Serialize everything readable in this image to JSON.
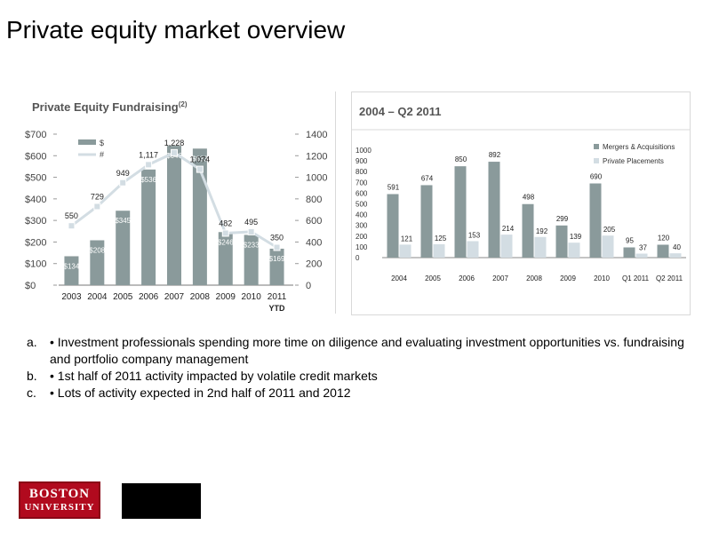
{
  "slide": {
    "title": "Private equity market overview"
  },
  "bullets": [
    {
      "letter": "a.",
      "text": "• Investment professionals spending more time on diligence and evaluating investment opportunities vs. fundraising and portfolio company management"
    },
    {
      "letter": "b.",
      "text": "• 1st half of 2011 activity impacted by volatile credit markets"
    },
    {
      "letter": "c.",
      "text": "• Lots of activity expected in 2nd half of 2011 and 2012"
    }
  ],
  "logo": {
    "line1": "BOSTON",
    "line2": "UNIVERSITY"
  },
  "colors": {
    "bar": "#8a9a9b",
    "line": "#d3dde3",
    "pp_bar": "#d3dde3",
    "title_text": "#555555",
    "logo": "#b10a1e"
  },
  "chart_data": [
    {
      "type": "bar",
      "title": "Private Equity Fundraising",
      "title_superscript": "(2)",
      "categories": [
        "2003",
        "2004",
        "2005",
        "2006",
        "2007",
        "2008",
        "2009",
        "2010",
        "2011"
      ],
      "category_sublabel": {
        "2011": "YTD"
      },
      "ylim": [
        0,
        700
      ],
      "yticks": [
        "$0",
        "$100",
        "$200",
        "$300",
        "$400",
        "$500",
        "$600",
        "$700"
      ],
      "y2lim": [
        0,
        1400
      ],
      "y2ticks": [
        "0",
        "200",
        "400",
        "600",
        "800",
        "1000",
        "1200",
        "1400"
      ],
      "legend": [
        "$",
        "#"
      ],
      "series": [
        {
          "name": "$",
          "type": "bar",
          "axis": "left",
          "values": [
            134,
            208,
            345,
            536,
            646,
            633,
            246,
            233,
            169
          ],
          "labels": [
            "$134",
            "$208",
            "$345",
            "$536",
            "$646",
            "$633",
            "$246",
            "$233",
            "$169"
          ]
        },
        {
          "name": "#",
          "type": "line",
          "axis": "right",
          "values": [
            550,
            729,
            949,
            1117,
            1228,
            1074,
            482,
            495,
            350
          ],
          "labels": [
            "550",
            "729",
            "949",
            "1,117",
            "1,228",
            "1,074",
            "482",
            "495",
            "350"
          ]
        }
      ]
    },
    {
      "type": "bar",
      "title": "2004 – Q2 2011",
      "categories": [
        "2004",
        "2005",
        "2006",
        "2007",
        "2008",
        "2009",
        "2010",
        "Q1 2011",
        "Q2 2011"
      ],
      "ylim": [
        0,
        1000
      ],
      "yticks": [
        "0",
        "100",
        "200",
        "300",
        "400",
        "500",
        "600",
        "700",
        "800",
        "900",
        "1000"
      ],
      "legend_position": "top-right",
      "series": [
        {
          "name": "Mergers & Acquisitions",
          "values": [
            591,
            674,
            850,
            892,
            498,
            299,
            690,
            95,
            120
          ]
        },
        {
          "name": "Private Placements",
          "values": [
            121,
            125,
            153,
            214,
            192,
            139,
            205,
            37,
            40
          ]
        }
      ]
    }
  ]
}
